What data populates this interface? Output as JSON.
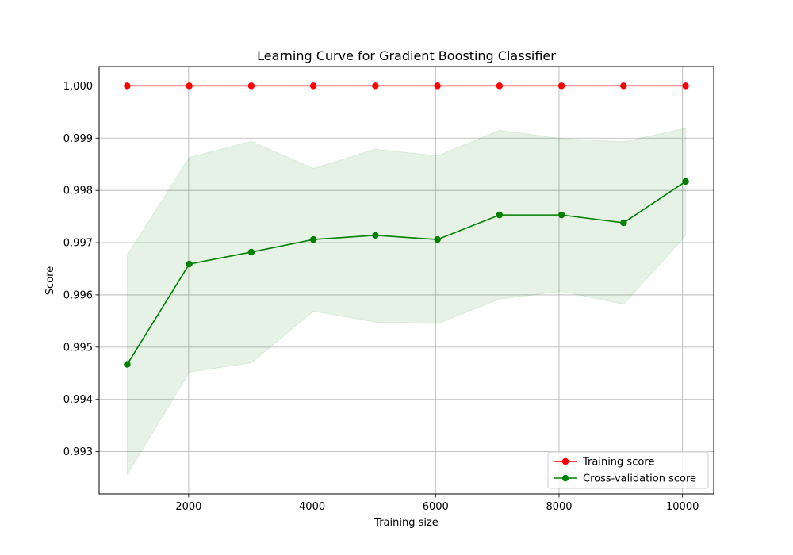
{
  "chart_data": {
    "type": "line",
    "title": "Learning Curve for Gradient Boosting Classifier",
    "xlabel": "Training size",
    "ylabel": "Score",
    "x": [
      1005,
      2010,
      3015,
      4020,
      5025,
      6030,
      7035,
      8040,
      9045,
      10050
    ],
    "xlim": [
      550,
      10505
    ],
    "ylim": [
      0.99219,
      1.00037
    ],
    "xticks": [
      2000,
      4000,
      6000,
      8000,
      10000
    ],
    "yticks": [
      0.993,
      0.994,
      0.995,
      0.996,
      0.997,
      0.998,
      0.999,
      1.0
    ],
    "ytick_decimals": 3,
    "grid": true,
    "legend_position": "lower-right",
    "series": [
      {
        "name": "Training score",
        "color": "#ff0000",
        "values": [
          1.0,
          1.0,
          1.0,
          1.0,
          1.0,
          1.0,
          1.0,
          1.0,
          1.0,
          1.0
        ],
        "band_lower": [
          1.0,
          1.0,
          1.0,
          1.0,
          1.0,
          1.0,
          1.0,
          1.0,
          1.0,
          1.0
        ],
        "band_upper": [
          1.0,
          1.0,
          1.0,
          1.0,
          1.0,
          1.0,
          1.0,
          1.0,
          1.0,
          1.0
        ]
      },
      {
        "name": "Cross-validation score",
        "color": "#008000",
        "values": [
          0.99467,
          0.99659,
          0.99682,
          0.99706,
          0.99714,
          0.99706,
          0.99753,
          0.99753,
          0.99738,
          0.99817
        ],
        "band_lower": [
          0.99256,
          0.99452,
          0.9947,
          0.99569,
          0.99548,
          0.99545,
          0.99592,
          0.99607,
          0.99582,
          0.99713
        ],
        "band_upper": [
          0.99676,
          0.99863,
          0.99894,
          0.99842,
          0.99879,
          0.99866,
          0.99915,
          0.99899,
          0.99893,
          0.99919
        ]
      }
    ]
  }
}
